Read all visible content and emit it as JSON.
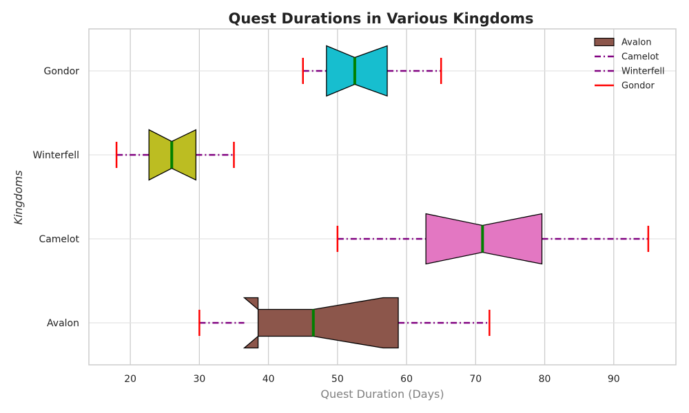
{
  "chart_data": {
    "type": "box",
    "title": "Quest Durations in Various Kingdoms",
    "xlabel": "Quest Duration (Days)",
    "ylabel": "Kingdoms",
    "xlim": [
      14,
      99
    ],
    "xticks": [
      20,
      30,
      40,
      50,
      60,
      70,
      80,
      90
    ],
    "categories": [
      "Avalon",
      "Camelot",
      "Winterfell",
      "Gondor"
    ],
    "boxes": [
      {
        "name": "Avalon",
        "whisker_low": 30,
        "q1": 38.5,
        "median": 46.5,
        "q3": 58.8,
        "whisker_high": 72,
        "notch_low": 36.5,
        "notch_high": 56.6,
        "color": "#8c564b"
      },
      {
        "name": "Camelot",
        "whisker_low": 50,
        "q1": 62.8,
        "median": 71.0,
        "q3": 79.6,
        "whisker_high": 95,
        "notch_low": 62.8,
        "notch_high": 79.6,
        "color": "#e377c2"
      },
      {
        "name": "Winterfell",
        "whisker_low": 18,
        "q1": 22.7,
        "median": 26.0,
        "q3": 29.5,
        "whisker_high": 35,
        "notch_low": 22.7,
        "notch_high": 29.5,
        "color": "#bcbd22"
      },
      {
        "name": "Gondor",
        "whisker_low": 45,
        "q1": 48.4,
        "median": 52.5,
        "q3": 57.2,
        "whisker_high": 65,
        "notch_low": 48.4,
        "notch_high": 57.2,
        "color": "#17becf"
      }
    ],
    "median_color": "#008000",
    "whisker_color": "#800080",
    "cap_color": "#ff0000",
    "grid": true,
    "legend": {
      "placement": "top-right",
      "entries": [
        {
          "label": "Avalon",
          "kind": "patch",
          "color": "#8c564b"
        },
        {
          "label": "Camelot",
          "kind": "dashdot",
          "color": "#800080"
        },
        {
          "label": "Winterfell",
          "kind": "dashdot",
          "color": "#800080"
        },
        {
          "label": "Gondor",
          "kind": "line",
          "color": "#ff0000"
        }
      ]
    }
  }
}
